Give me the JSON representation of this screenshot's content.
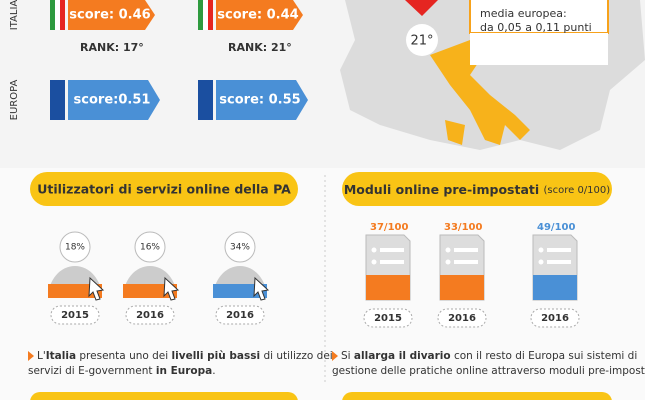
{
  "top": {
    "italia_label": "ITALIA",
    "europa_label": "EUROPA",
    "columns": [
      {
        "italia_score": "score: 0.46",
        "rank": "RANK: 17°",
        "europa_score": "score:0.51"
      },
      {
        "italia_score": "score: 0.44",
        "rank": "RANK: 21°",
        "europa_score": "score: 0.55"
      }
    ],
    "map_rank": "21°",
    "callout": [
      "media europea:",
      "da 0,05 a 0,11 punti"
    ]
  },
  "left": {
    "title": "Utilizzatori di servizi online della PA",
    "items": [
      {
        "value": "18%",
        "year": "2015"
      },
      {
        "value": "16%",
        "year": "2016"
      },
      {
        "value": "34%",
        "year": "2016"
      }
    ],
    "note_lines": [
      [
        "L'",
        "Italia",
        " presenta uno dei ",
        "livelli più bassi",
        " di utilizzo dei"
      ],
      [
        "servizi di E-government ",
        "in Europa",
        "."
      ]
    ]
  },
  "right": {
    "title": "Moduli online pre-impostati",
    "subtitle": "(score 0/100)",
    "items": [
      {
        "value": "37/100",
        "year": "2015"
      },
      {
        "value": "33/100",
        "year": "2016"
      },
      {
        "value": "49/100",
        "year": "2016"
      }
    ],
    "note_lines": [
      [
        "Si ",
        "allarga il divario",
        " con il resto di Europa sui sistemi di"
      ],
      [
        "gestione delle pratiche online attraverso moduli pre-impostati."
      ]
    ]
  }
}
